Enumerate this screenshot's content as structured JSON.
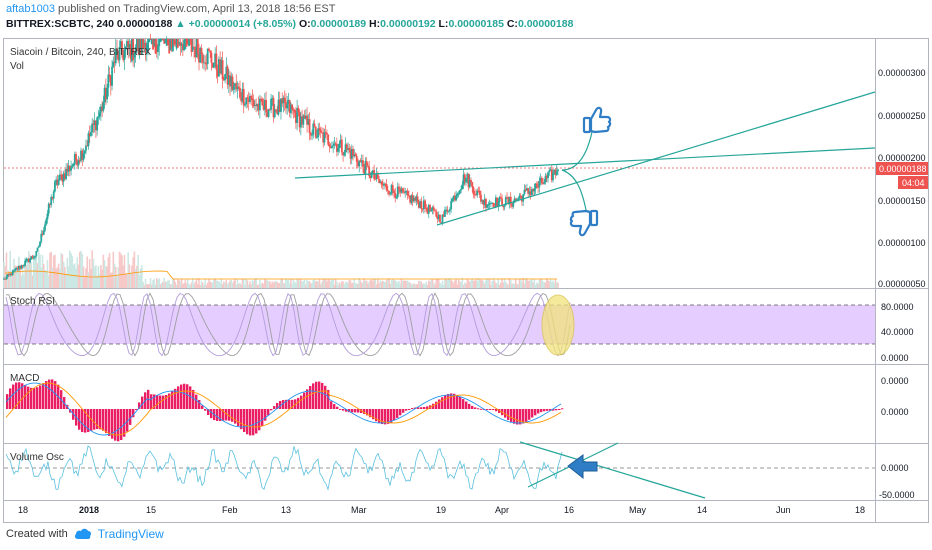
{
  "header": {
    "author": "aftab1003",
    "published": " published on TradingView.com, April 13, 2018 18:56 EST",
    "symbol": "BITTREX:SCBTC, 240",
    "last": "0.00000188",
    "change_arrow": "▲",
    "change": "+0.00000014 (+8.05%)",
    "o_label": "O:",
    "o": "0.00000189",
    "h_label": "H:",
    "h": "0.00000192",
    "l_label": "L:",
    "l": "0.00000185",
    "c_label": "C:",
    "c": "0.00000188"
  },
  "main_pane": {
    "title": "Siacoin / Bitcoin, 240, BITTREX",
    "subtitle": "Vol",
    "y_ticks": [
      "0.00000300",
      "0.00000250",
      "0.00000200",
      "0.00000150",
      "0.00000100",
      "0.00000050"
    ],
    "price_tag": "0.00000188",
    "countdown": "04:04"
  },
  "stoch_pane": {
    "title": "Stoch RSI",
    "y_ticks": [
      "80.0000",
      "40.0000",
      "0.0000"
    ]
  },
  "macd_pane": {
    "title": "MACD",
    "y_ticks": [
      "0.0000",
      "0.0000"
    ]
  },
  "vosc_pane": {
    "title": "Volume Osc",
    "y_ticks": [
      "0.0000",
      "-50.0000"
    ]
  },
  "x_axis": {
    "labels": [
      "18",
      "2018",
      "15",
      "Feb",
      "13",
      "Mar",
      "19",
      "Apr",
      "16",
      "May",
      "14",
      "Jun",
      "18"
    ]
  },
  "footer": {
    "created": "Created with",
    "brand": "TradingView"
  },
  "colors": {
    "up": "#26a69a",
    "down": "#ef5350",
    "trend": "#26a69a",
    "annotation": "#2f7dc4",
    "stoch_band": "#e1c6ff",
    "macd_hist": "#e91e63",
    "highlight": "#f2e37a"
  },
  "chart_data": [
    {
      "type": "candlestick",
      "title": "Siacoin / Bitcoin, 240, BITTREX",
      "x_range": [
        "2017-12-15",
        "2018-06-20"
      ],
      "y_range": [
        5e-07,
        3.4e-06
      ],
      "current_price": 1.88e-06,
      "approx_close_path": [
        [
          "2017-12-15",
          6e-07
        ],
        [
          "2017-12-22",
          9e-07
        ],
        [
          "2017-12-26",
          1.7e-06
        ],
        [
          "2018-01-01",
          2.1e-06
        ],
        [
          "2018-01-05",
          2.6e-06
        ],
        [
          "2018-01-08",
          3.2e-06
        ],
        [
          "2018-01-15",
          3.4e-06
        ],
        [
          "2018-01-22",
          3.4e-06
        ],
        [
          "2018-01-28",
          3.2e-06
        ],
        [
          "2018-02-03",
          2.8e-06
        ],
        [
          "2018-02-08",
          2.6e-06
        ],
        [
          "2018-02-14",
          2.6e-06
        ],
        [
          "2018-02-20",
          2.3e-06
        ],
        [
          "2018-02-27",
          2.1e-06
        ],
        [
          "2018-03-06",
          1.7e-06
        ],
        [
          "2018-03-14",
          1.5e-06
        ],
        [
          "2018-03-19",
          1.3e-06
        ],
        [
          "2018-03-24",
          1.8e-06
        ],
        [
          "2018-03-28",
          1.5e-06
        ],
        [
          "2018-04-03",
          1.5e-06
        ],
        [
          "2018-04-09",
          1.7e-06
        ],
        [
          "2018-04-13",
          1.88e-06
        ]
      ],
      "trendlines": [
        {
          "from": [
            "2018-01-31",
            1.74e-06
          ],
          "to": [
            "2018-06-20",
            2.09e-06
          ]
        },
        {
          "from": [
            "2018-03-18",
            1.23e-06
          ],
          "to": [
            "2018-06-20",
            2.74e-06
          ]
        }
      ]
    },
    {
      "type": "line",
      "title": "Stoch RSI",
      "y_range": [
        0,
        100
      ],
      "bands": [
        20,
        80
      ],
      "band_fill": true
    },
    {
      "type": "histogram",
      "title": "MACD"
    },
    {
      "type": "line",
      "title": "Volume Osc",
      "y_range": [
        -50,
        20
      ]
    }
  ]
}
